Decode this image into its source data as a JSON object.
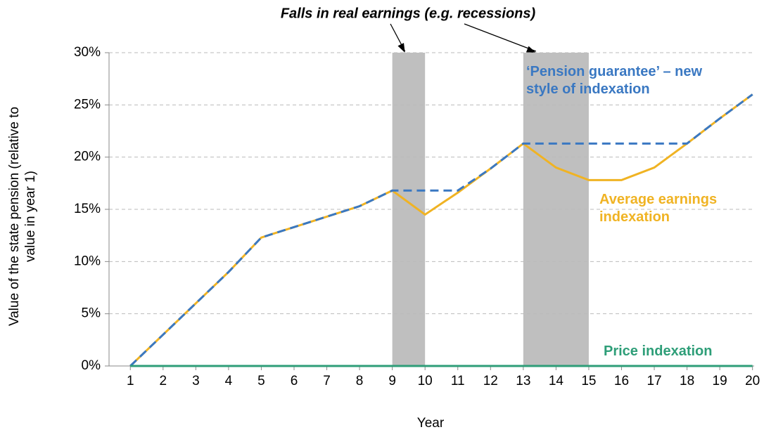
{
  "chart_data": {
    "type": "line",
    "annotation": "Falls in real earnings (e.g. recessions)",
    "shaded_ranges": [
      [
        9,
        10
      ],
      [
        13,
        15
      ]
    ],
    "shade_color": "#bfbfbf",
    "x_label": "Year",
    "y_label": "Value of the state pension (relative to value in year 1)",
    "x": [
      1,
      2,
      3,
      4,
      5,
      6,
      7,
      8,
      9,
      10,
      11,
      12,
      13,
      14,
      15,
      16,
      17,
      18,
      19,
      20
    ],
    "series": [
      {
        "name": "Average earnings indexation",
        "color": "#f0b323",
        "dashed": false,
        "values": [
          0,
          3,
          6,
          9,
          12.3,
          13.3,
          14.3,
          15.3,
          16.8,
          14.5,
          16.6,
          18.9,
          21.3,
          19,
          17.8,
          17.8,
          19,
          21.3,
          23.7,
          26
        ]
      },
      {
        "name": "‘Pension guarantee’ – new style of indexation",
        "color": "#3a78c2",
        "dashed": true,
        "values": [
          0,
          3,
          6,
          9,
          12.3,
          13.3,
          14.3,
          15.3,
          16.8,
          16.8,
          16.8,
          18.9,
          21.3,
          21.3,
          21.3,
          21.3,
          21.3,
          21.3,
          23.7,
          26
        ]
      },
      {
        "name": "Price indexation",
        "color": "#2e9e78",
        "dashed": false,
        "values": [
          0,
          0,
          0,
          0,
          0,
          0,
          0,
          0,
          0,
          0,
          0,
          0,
          0,
          0,
          0,
          0,
          0,
          0,
          0,
          0
        ]
      }
    ],
    "xlim": [
      0.35,
      20.05
    ],
    "xticks": [
      1,
      2,
      3,
      4,
      5,
      6,
      7,
      8,
      9,
      10,
      11,
      12,
      13,
      14,
      15,
      16,
      17,
      18,
      19,
      20
    ],
    "ylim": [
      0,
      30
    ],
    "yticks": [
      {
        "value": 0,
        "label": "0%"
      },
      {
        "value": 5,
        "label": "5%"
      },
      {
        "value": 10,
        "label": "10%"
      },
      {
        "value": 15,
        "label": "15%"
      },
      {
        "value": 20,
        "label": "20%"
      },
      {
        "value": 25,
        "label": "25%"
      },
      {
        "value": 30,
        "label": "30%"
      }
    ],
    "grid": true
  }
}
